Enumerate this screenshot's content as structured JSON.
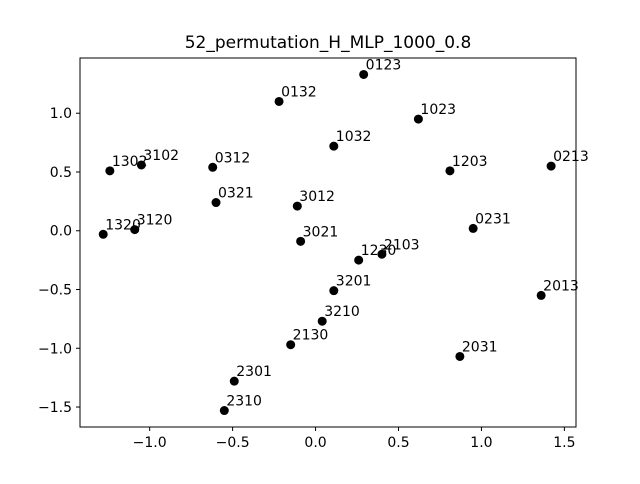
{
  "chart_data": {
    "type": "scatter",
    "title": "52_permutation_H_MLP_1000_0.8",
    "xlabel": "",
    "ylabel": "",
    "xlim": [
      -1.42,
      1.57
    ],
    "ylim": [
      -1.67,
      1.47
    ],
    "xticks": [
      -1.0,
      -0.5,
      0.0,
      0.5,
      1.0,
      1.5
    ],
    "xtick_labels": [
      "−1.0",
      "−0.5",
      "0.0",
      "0.5",
      "1.0",
      "1.5"
    ],
    "yticks": [
      1.0,
      0.5,
      0.0,
      -0.5,
      -1.0,
      -1.5
    ],
    "ytick_labels": [
      "1.0",
      "0.5",
      "0.0",
      "−0.5",
      "−1.0",
      "−1.5"
    ],
    "grid": false,
    "marker_color": "#000000",
    "points": [
      {
        "label": "0123",
        "x": 0.29,
        "y": 1.33
      },
      {
        "label": "0132",
        "x": -0.22,
        "y": 1.1
      },
      {
        "label": "1023",
        "x": 0.62,
        "y": 0.95
      },
      {
        "label": "1032",
        "x": 0.11,
        "y": 0.72
      },
      {
        "label": "1302",
        "x": -1.24,
        "y": 0.51
      },
      {
        "label": "3102",
        "x": -1.05,
        "y": 0.56
      },
      {
        "label": "0312",
        "x": -0.62,
        "y": 0.54
      },
      {
        "label": "1203",
        "x": 0.81,
        "y": 0.51
      },
      {
        "label": "0213",
        "x": 1.42,
        "y": 0.55
      },
      {
        "label": "0321",
        "x": -0.6,
        "y": 0.24
      },
      {
        "label": "3012",
        "x": -0.11,
        "y": 0.21
      },
      {
        "label": "1320",
        "x": -1.28,
        "y": -0.03
      },
      {
        "label": "3120",
        "x": -1.09,
        "y": 0.01
      },
      {
        "label": "0231",
        "x": 0.95,
        "y": 0.02
      },
      {
        "label": "3021",
        "x": -0.09,
        "y": -0.09
      },
      {
        "label": "1230",
        "x": 0.26,
        "y": -0.25
      },
      {
        "label": "2103",
        "x": 0.4,
        "y": -0.2
      },
      {
        "label": "3201",
        "x": 0.11,
        "y": -0.51
      },
      {
        "label": "2013",
        "x": 1.36,
        "y": -0.55
      },
      {
        "label": "3210",
        "x": 0.04,
        "y": -0.77
      },
      {
        "label": "2130",
        "x": -0.15,
        "y": -0.97
      },
      {
        "label": "2031",
        "x": 0.87,
        "y": -1.07
      },
      {
        "label": "2301",
        "x": -0.49,
        "y": -1.28
      },
      {
        "label": "2310",
        "x": -0.55,
        "y": -1.53
      }
    ]
  }
}
